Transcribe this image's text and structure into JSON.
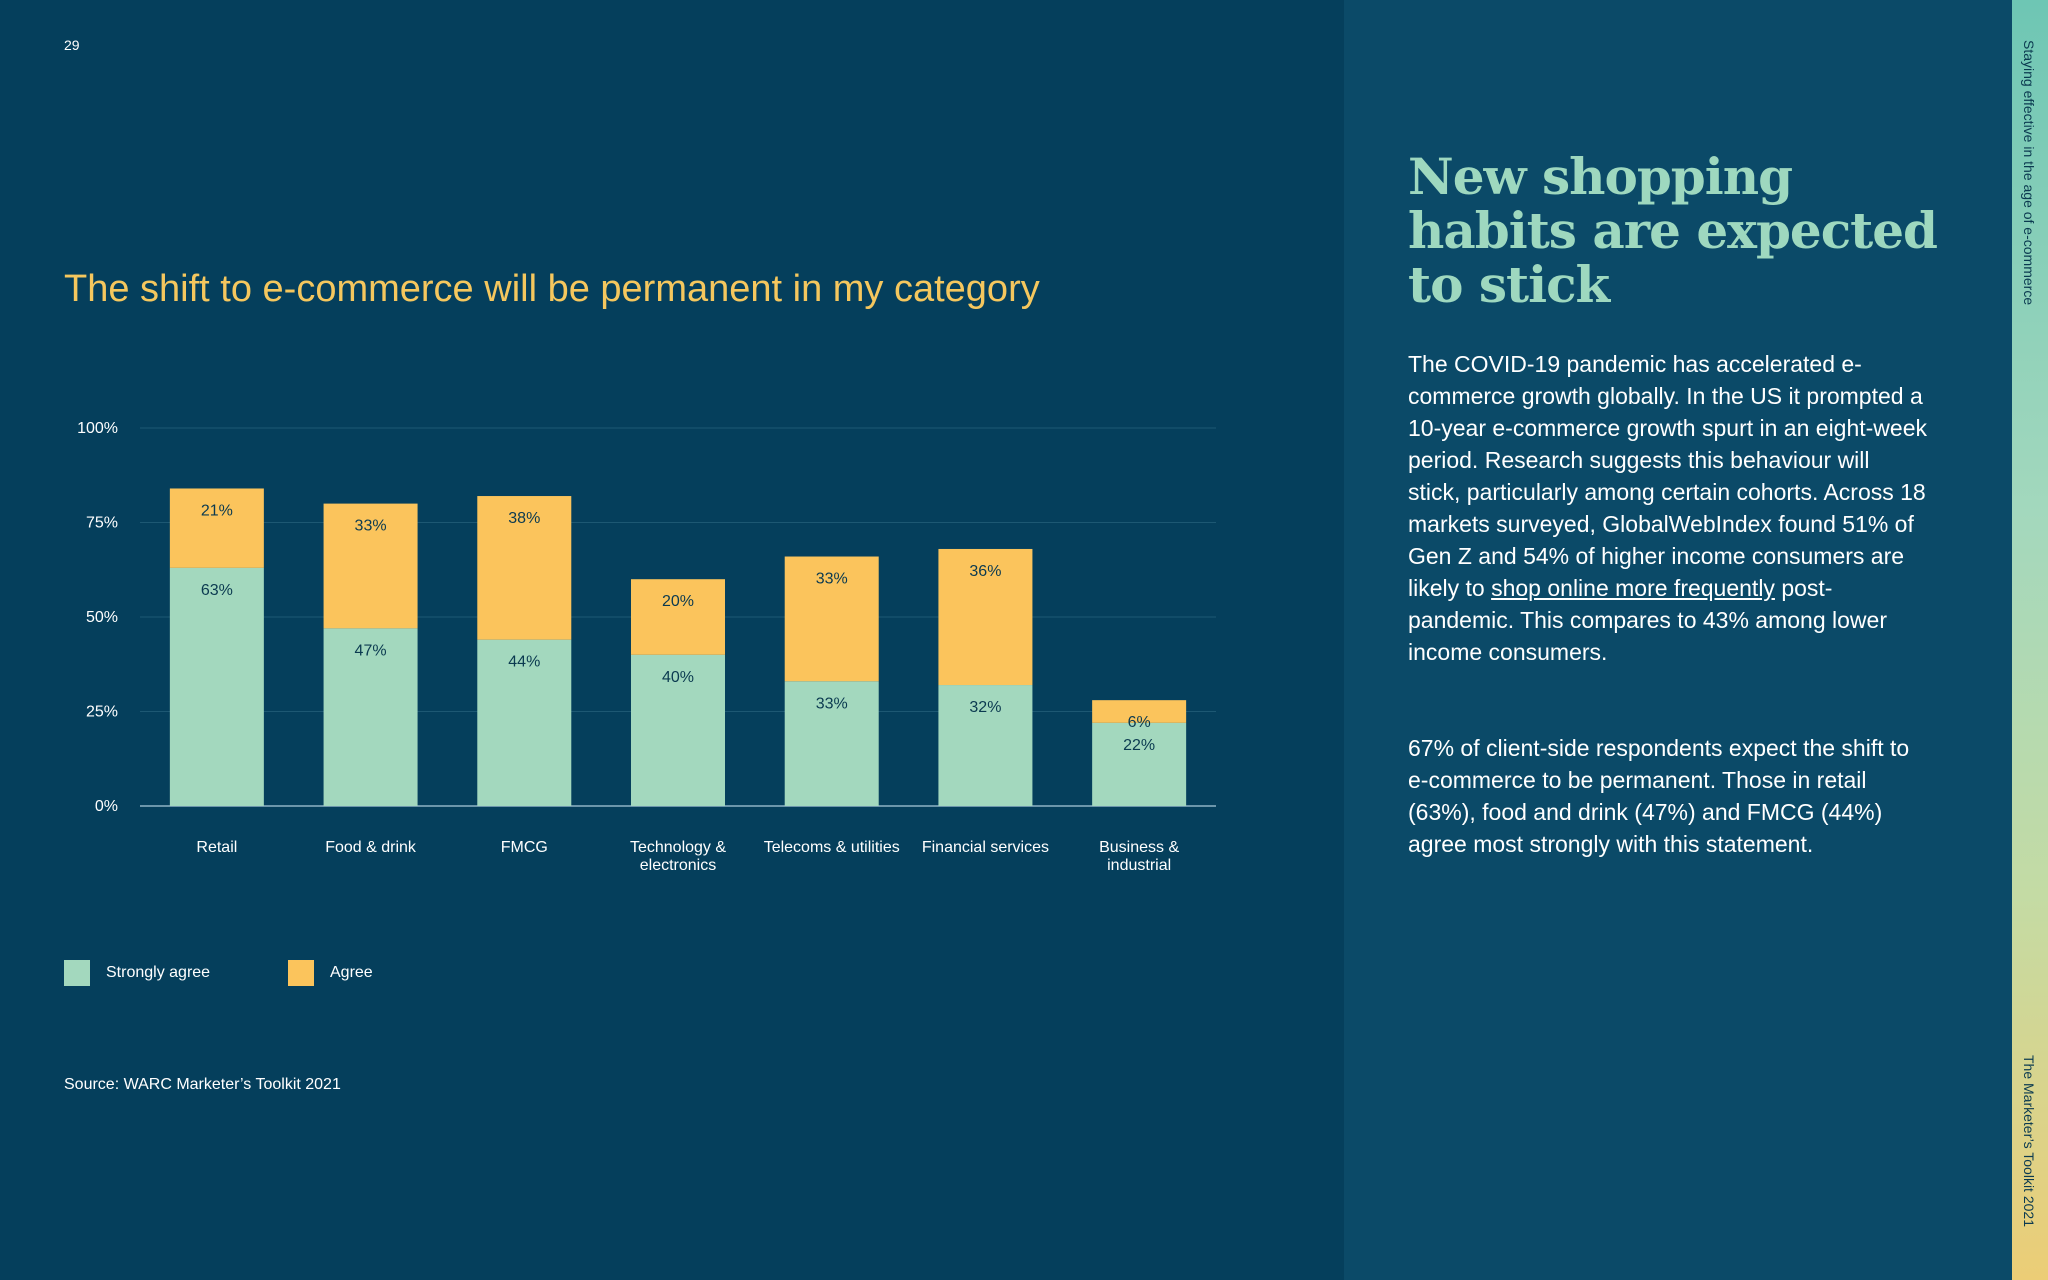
{
  "page": {
    "number": "29"
  },
  "chart_title": "The shift to e-commerce will be permanent in my category",
  "chart_data": {
    "type": "bar",
    "stacked": true,
    "title": "The shift to e-commerce will be permanent in my category",
    "categories": [
      [
        "Retail"
      ],
      [
        "Food & drink"
      ],
      [
        "FMCG"
      ],
      [
        "Technology &",
        "electronics"
      ],
      [
        "Telecoms & utilities"
      ],
      [
        "Financial services"
      ],
      [
        "Business &",
        "industrial"
      ]
    ],
    "series": [
      {
        "name": "Strongly agree",
        "color": "#a3d8be",
        "values": [
          63,
          47,
          44,
          40,
          33,
          32,
          22
        ]
      },
      {
        "name": "Agree",
        "color": "#fbc45c",
        "values": [
          21,
          33,
          38,
          20,
          33,
          36,
          6
        ]
      }
    ],
    "yticks": [
      0,
      25,
      50,
      75,
      100
    ],
    "ylim": [
      0,
      100
    ],
    "ylabel": "",
    "xlabel": "",
    "grid": true,
    "legend_position": "bottom-left"
  },
  "legend": {
    "strongly_agree": "Strongly agree",
    "agree": "Agree"
  },
  "source": "Source: WARC Marketer’s Toolkit 2021",
  "heading": "New shopping habits are expected to stick",
  "paragraph1": {
    "before": "The COVID-19 pandemic has accelerated e-commerce growth globally. In the US it prompted a 10-year e-commerce growth spurt in an eight-week period. Research suggests this behaviour will stick, particularly among certain cohorts. Across 18 markets surveyed, GlobalWebIndex found 51% of Gen Z and 54% of higher income consumers are likely to ",
    "link": "shop online more frequently",
    "after": " post-pandemic. This compares to 43% among lower income consumers."
  },
  "paragraph2": "67% of client-side respondents expect the shift to e-commerce to be permanent. Those in retail (63%), food and drink (47%) and FMCG (44%) agree most strongly with this statement.",
  "side_labels": {
    "top": "Staying effective in the age of e-commerce",
    "bottom": "The Marketer’s Toolkit 2021"
  },
  "colors": {
    "background": "#053f5c",
    "panel": "#0b4a68",
    "title": "#f5c75e",
    "heading": "#9ed8bf"
  }
}
